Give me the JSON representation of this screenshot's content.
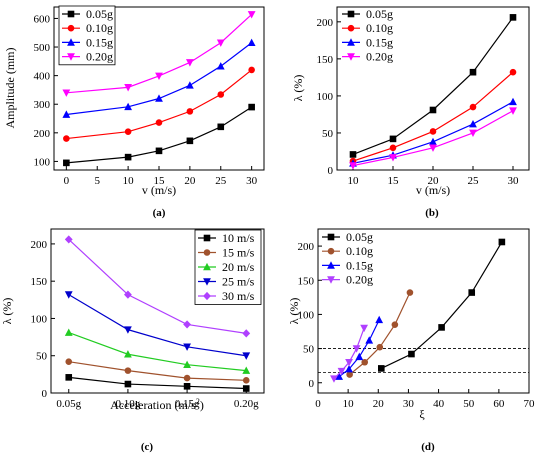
{
  "chart_data": [
    {
      "id": "a",
      "type": "line",
      "panel_label": "(a)",
      "xlabel": "v (m/s)",
      "ylabel": "Amplitude (mm)",
      "xlim": [
        -2,
        32
      ],
      "ylim": [
        70,
        640
      ],
      "xticks": [
        0,
        5,
        10,
        15,
        20,
        25,
        30
      ],
      "yticks": [
        100,
        200,
        300,
        400,
        500,
        600
      ],
      "grid": false,
      "legend": "top-left",
      "x": [
        0,
        10,
        15,
        20,
        25,
        30
      ],
      "series": [
        {
          "name": "0.05g",
          "color": "#000000",
          "marker": "square",
          "values": [
            95,
            115,
            137,
            172,
            221,
            290
          ]
        },
        {
          "name": "0.10g",
          "color": "#ff0000",
          "marker": "circle",
          "values": [
            180,
            204,
            236,
            275,
            334,
            420
          ]
        },
        {
          "name": "0.15g",
          "color": "#0000ff",
          "marker": "triangle-up",
          "values": [
            264,
            291,
            320,
            366,
            433,
            515
          ]
        },
        {
          "name": "0.20g",
          "color": "#ff00ff",
          "marker": "triangle-down",
          "values": [
            340,
            359,
            399,
            446,
            515,
            614
          ]
        }
      ]
    },
    {
      "id": "b",
      "type": "line",
      "panel_label": "(b)",
      "xlabel": "v (m/s)",
      "ylabel": "λ (%)",
      "xlim": [
        8,
        32
      ],
      "ylim": [
        0,
        220
      ],
      "xticks": [
        10,
        15,
        20,
        25,
        30
      ],
      "yticks": [
        0,
        50,
        100,
        150,
        200
      ],
      "grid": false,
      "legend": "top-left",
      "x": [
        10,
        15,
        20,
        25,
        30
      ],
      "series": [
        {
          "name": "0.05g",
          "color": "#000000",
          "marker": "square",
          "values": [
            21,
            42,
            81,
            132,
            206
          ]
        },
        {
          "name": "0.10g",
          "color": "#ff0000",
          "marker": "circle",
          "values": [
            12,
            30,
            52,
            85,
            132
          ]
        },
        {
          "name": "0.15g",
          "color": "#0000ff",
          "marker": "triangle-up",
          "values": [
            9,
            20,
            38,
            62,
            92
          ]
        },
        {
          "name": "0.20g",
          "color": "#ff00ff",
          "marker": "triangle-down",
          "values": [
            6,
            17,
            30,
            50,
            80
          ]
        }
      ]
    },
    {
      "id": "c",
      "type": "line",
      "panel_label": "(c)",
      "xlabel": "Acceleration (m/s",
      "xlabel_sup": "2",
      "xlabel_end": ")",
      "ylabel": "λ (%)",
      "ylim": [
        0,
        220
      ],
      "categories": [
        "0.05g",
        "0.10g",
        "0.15g",
        "0.20g"
      ],
      "yticks": [
        0,
        50,
        100,
        150,
        200
      ],
      "grid": false,
      "legend": "top-right",
      "series": [
        {
          "name": "10 m/s",
          "color": "#000000",
          "marker": "square",
          "values": [
            21,
            12,
            9,
            6
          ]
        },
        {
          "name": "15 m/s",
          "color": "#a0522d",
          "marker": "circle",
          "values": [
            42,
            30,
            20,
            17
          ]
        },
        {
          "name": "20 m/s",
          "color": "#22cc22",
          "marker": "triangle-up",
          "values": [
            81,
            52,
            38,
            30
          ]
        },
        {
          "name": "25 m/s",
          "color": "#0000cc",
          "marker": "triangle-down",
          "values": [
            132,
            85,
            62,
            50
          ]
        },
        {
          "name": "30 m/s",
          "color": "#b040ff",
          "marker": "diamond",
          "values": [
            206,
            132,
            92,
            80
          ]
        }
      ]
    },
    {
      "id": "d",
      "type": "line",
      "panel_label": "(d)",
      "xlabel": "ξ",
      "ylabel": "λ (%)",
      "xlim": [
        0,
        70
      ],
      "ylim": [
        -15,
        225
      ],
      "xticks": [
        0,
        10,
        20,
        30,
        40,
        50,
        60,
        70
      ],
      "yticks": [
        0,
        50,
        100,
        150,
        200
      ],
      "grid": false,
      "legend": "top-left",
      "hlines": [
        50,
        15
      ],
      "series": [
        {
          "name": "0.05g",
          "color": "#000000",
          "marker": "square",
          "x": [
            21,
            31,
            41,
            51,
            61
          ],
          "values": [
            21,
            42,
            81,
            132,
            206
          ]
        },
        {
          "name": "0.10g",
          "color": "#a0522d",
          "marker": "circle",
          "x": [
            10.5,
            15.5,
            20.5,
            25.5,
            30.5
          ],
          "values": [
            12,
            30,
            52,
            85,
            132
          ]
        },
        {
          "name": "0.15g",
          "color": "#0000ff",
          "marker": "triangle-up",
          "x": [
            7,
            10.3,
            13.7,
            17,
            20.3
          ],
          "values": [
            9,
            20,
            38,
            62,
            92
          ]
        },
        {
          "name": "0.20g",
          "color": "#b040ff",
          "marker": "triangle-down",
          "x": [
            5.3,
            7.8,
            10.3,
            12.8,
            15.3
          ],
          "values": [
            6,
            17,
            30,
            50,
            80
          ]
        }
      ]
    }
  ]
}
